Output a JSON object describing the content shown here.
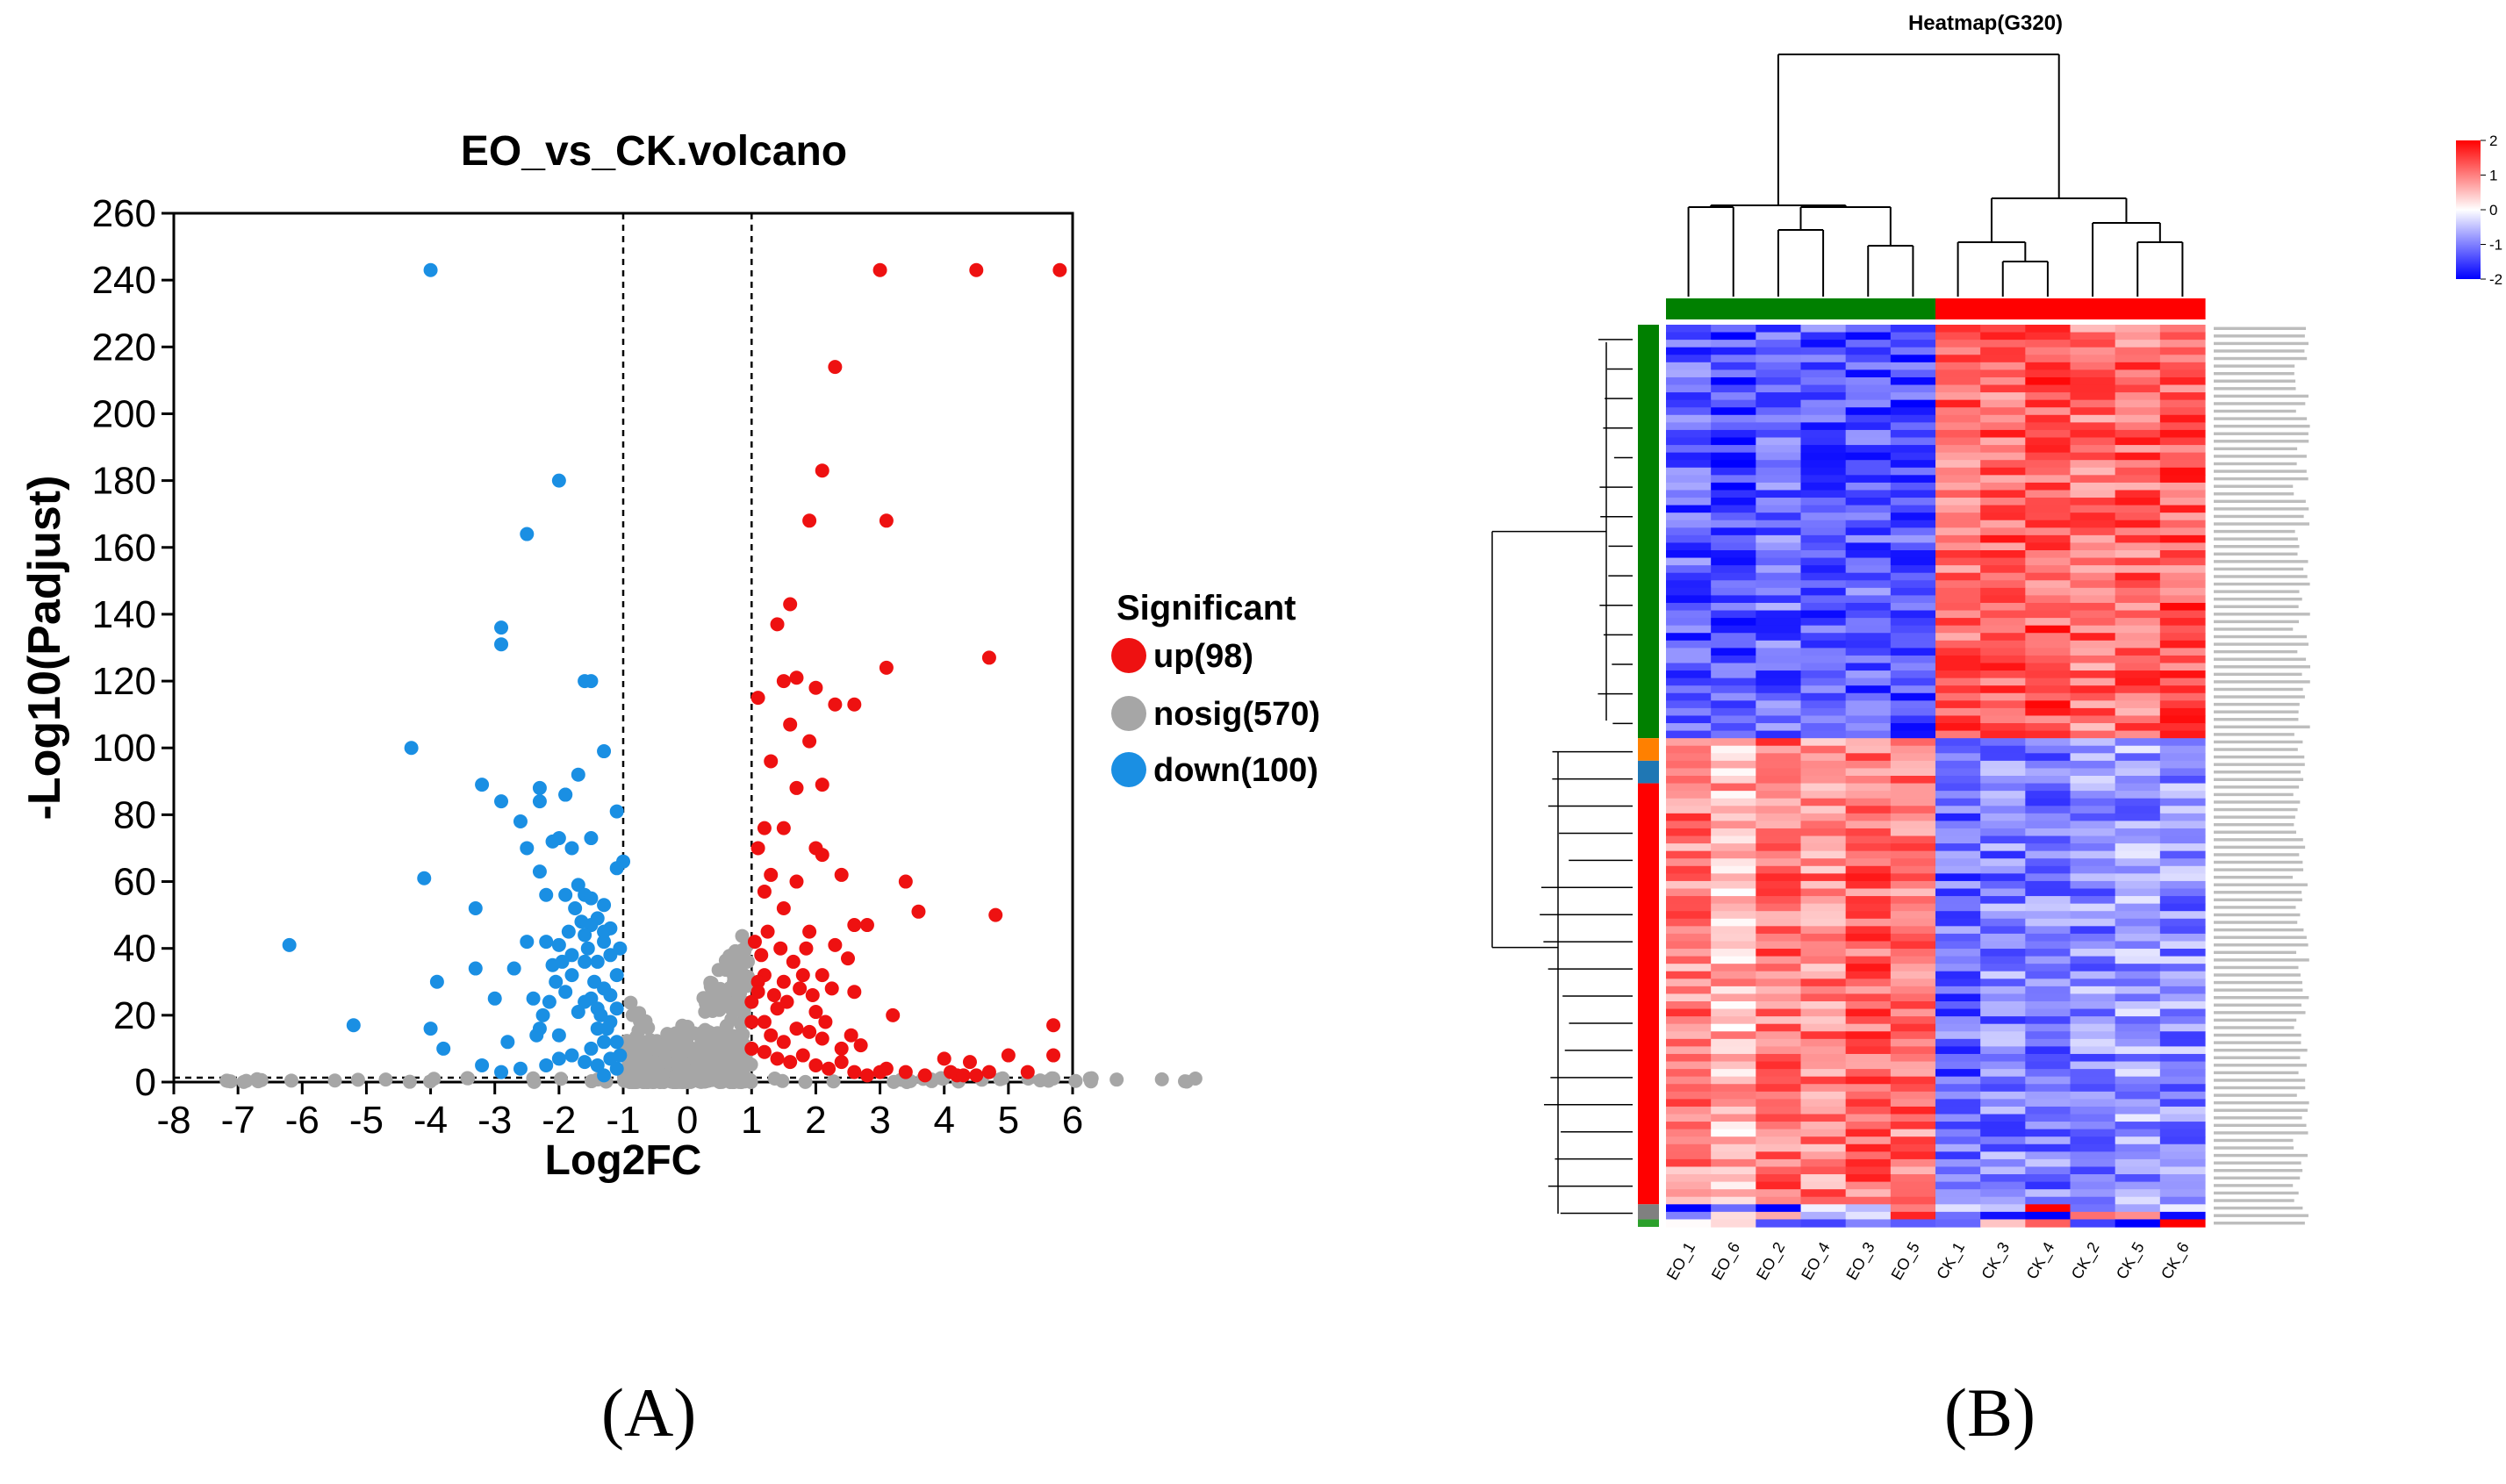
{
  "panels": {
    "a": "(A)",
    "b": "(B)"
  },
  "colors": {
    "up": "#ee1111",
    "nosig": "#a6a6a6",
    "down": "#1a8fe3",
    "heat_high": "#ff0000",
    "heat_mid": "#ffffff",
    "heat_low": "#0000ff",
    "group_eo": "#008000",
    "group_ck": "#ff0000"
  },
  "chart_data": [
    {
      "type": "scatter",
      "title": "EO_vs_CK.volcano",
      "xlabel": "Log2FC",
      "ylabel": "-Log10(Padjust)",
      "xlim": [
        -8,
        6
      ],
      "ylim": [
        0,
        260
      ],
      "xticks": [
        -8,
        -7,
        -6,
        -5,
        -4,
        -3,
        -2,
        -1,
        0,
        1,
        2,
        3,
        4,
        5,
        6
      ],
      "yticks": [
        0,
        20,
        40,
        60,
        80,
        100,
        120,
        140,
        160,
        180,
        200,
        220,
        240,
        260
      ],
      "thresholds": {
        "log2fc": [
          -1,
          1
        ],
        "padjust": 1.3
      },
      "legend_title": "Significant",
      "series": [
        {
          "name": "up(98)",
          "key": "up",
          "points": [
            [
              3.0,
              243
            ],
            [
              4.5,
              243
            ],
            [
              5.8,
              243
            ],
            [
              2.3,
              214
            ],
            [
              2.1,
              183
            ],
            [
              1.9,
              168
            ],
            [
              3.1,
              168
            ],
            [
              1.6,
              143
            ],
            [
              1.4,
              137
            ],
            [
              4.7,
              127
            ],
            [
              3.1,
              124
            ],
            [
              1.7,
              121
            ],
            [
              1.1,
              115
            ],
            [
              1.5,
              120
            ],
            [
              2.0,
              118
            ],
            [
              2.3,
              113
            ],
            [
              2.6,
              113
            ],
            [
              1.6,
              107
            ],
            [
              1.9,
              102
            ],
            [
              1.3,
              96
            ],
            [
              2.1,
              89
            ],
            [
              1.7,
              88
            ],
            [
              1.2,
              76
            ],
            [
              1.5,
              76
            ],
            [
              2.0,
              70
            ],
            [
              2.1,
              68
            ],
            [
              1.1,
              70
            ],
            [
              1.3,
              62
            ],
            [
              1.7,
              60
            ],
            [
              2.4,
              62
            ],
            [
              3.4,
              60
            ],
            [
              3.6,
              51
            ],
            [
              1.2,
              57
            ],
            [
              1.5,
              52
            ],
            [
              2.8,
              47
            ],
            [
              2.6,
              47
            ],
            [
              4.8,
              50
            ],
            [
              2.3,
              41
            ],
            [
              1.9,
              45
            ],
            [
              2.5,
              37
            ],
            [
              2.1,
              32
            ],
            [
              1.8,
              32
            ],
            [
              1.5,
              30
            ],
            [
              1.2,
              32
            ],
            [
              1.0,
              24
            ],
            [
              1.1,
              30
            ],
            [
              1.4,
              22
            ],
            [
              2.0,
              21
            ],
            [
              2.6,
              27
            ],
            [
              3.2,
              20
            ],
            [
              1.1,
              27
            ],
            [
              5.7,
              17
            ],
            [
              1.0,
              10
            ],
            [
              1.2,
              9
            ],
            [
              1.4,
              7
            ],
            [
              1.6,
              6
            ],
            [
              1.8,
              8
            ],
            [
              2.0,
              5
            ],
            [
              2.2,
              4
            ],
            [
              2.4,
              6
            ],
            [
              2.6,
              3
            ],
            [
              2.8,
              2
            ],
            [
              3.0,
              3
            ],
            [
              4.0,
              7
            ],
            [
              4.4,
              6
            ],
            [
              4.1,
              3
            ],
            [
              4.2,
              2
            ],
            [
              4.3,
              2
            ],
            [
              4.5,
              2
            ],
            [
              4.7,
              3
            ],
            [
              5.0,
              8
            ],
            [
              5.3,
              3
            ],
            [
              5.7,
              8
            ],
            [
              1.3,
              14
            ],
            [
              1.5,
              12
            ],
            [
              1.9,
              15
            ],
            [
              2.1,
              13
            ],
            [
              2.7,
              11
            ],
            [
              1.0,
              18
            ],
            [
              1.2,
              18
            ],
            [
              1.7,
              16
            ],
            [
              2.4,
              10
            ],
            [
              3.1,
              4
            ],
            [
              3.4,
              3
            ],
            [
              3.7,
              2
            ],
            [
              1.05,
              42
            ],
            [
              1.25,
              45
            ],
            [
              1.45,
              40
            ],
            [
              1.65,
              36
            ],
            [
              1.85,
              40
            ],
            [
              2.25,
              28
            ],
            [
              1.55,
              24
            ],
            [
              1.35,
              26
            ],
            [
              1.15,
              38
            ],
            [
              1.75,
              28
            ],
            [
              1.95,
              26
            ],
            [
              2.15,
              18
            ],
            [
              2.55,
              14
            ]
          ]
        },
        {
          "name": "nosig(570)",
          "key": "nosig",
          "points": "generated-near-origin"
        },
        {
          "name": "down(100)",
          "key": "down",
          "points": [
            [
              -4.0,
              243
            ],
            [
              -2.0,
              180
            ],
            [
              -2.5,
              164
            ],
            [
              -2.9,
              136
            ],
            [
              -2.9,
              131
            ],
            [
              -1.6,
              120
            ],
            [
              -1.5,
              120
            ],
            [
              -4.3,
              100
            ],
            [
              -1.3,
              99
            ],
            [
              -1.7,
              92
            ],
            [
              -3.2,
              89
            ],
            [
              -2.3,
              88
            ],
            [
              -2.3,
              84
            ],
            [
              -1.9,
              86
            ],
            [
              -1.9,
              86
            ],
            [
              -2.9,
              84
            ],
            [
              -2.6,
              78
            ],
            [
              -1.1,
              81
            ],
            [
              -2.0,
              73
            ],
            [
              -2.1,
              72
            ],
            [
              -1.5,
              73
            ],
            [
              -1.8,
              70
            ],
            [
              -2.5,
              70
            ],
            [
              -1.0,
              66
            ],
            [
              -1.1,
              64
            ],
            [
              -2.3,
              63
            ],
            [
              -4.1,
              61
            ],
            [
              -1.7,
              59
            ],
            [
              -1.9,
              56
            ],
            [
              -2.2,
              56
            ],
            [
              -1.6,
              56
            ],
            [
              -1.3,
              53
            ],
            [
              -1.5,
              55
            ],
            [
              -3.3,
              52
            ],
            [
              -1.4,
              49
            ],
            [
              -1.5,
              47
            ],
            [
              -1.2,
              46
            ],
            [
              -1.3,
              45
            ],
            [
              -1.6,
              44
            ],
            [
              -1.3,
              42
            ],
            [
              -2.5,
              42
            ],
            [
              -2.2,
              42
            ],
            [
              -2.0,
              41
            ],
            [
              -1.8,
              38
            ],
            [
              -1.6,
              36
            ],
            [
              -1.4,
              36
            ],
            [
              -1.2,
              38
            ],
            [
              -1.05,
              40
            ],
            [
              -6.2,
              41
            ],
            [
              -2.1,
              35
            ],
            [
              -3.3,
              34
            ],
            [
              -2.7,
              34
            ],
            [
              -1.8,
              32
            ],
            [
              -1.1,
              32
            ],
            [
              -1.9,
              27
            ],
            [
              -1.5,
              25
            ],
            [
              -1.3,
              28
            ],
            [
              -1.2,
              26
            ],
            [
              -2.4,
              25
            ],
            [
              -3.0,
              25
            ],
            [
              -3.9,
              30
            ],
            [
              -1.6,
              24
            ],
            [
              -1.4,
              22
            ],
            [
              -1.1,
              22
            ],
            [
              -1.7,
              21
            ],
            [
              -1.4,
              16
            ],
            [
              -1.2,
              18
            ],
            [
              -1.3,
              12
            ],
            [
              -4.0,
              16
            ],
            [
              -5.2,
              17
            ],
            [
              -2.3,
              16
            ],
            [
              -2.8,
              12
            ],
            [
              -2.0,
              14
            ],
            [
              -3.8,
              10
            ],
            [
              -1.5,
              10
            ],
            [
              -1.2,
              7
            ],
            [
              -1.4,
              5
            ],
            [
              -1.1,
              4
            ],
            [
              -1.6,
              6
            ],
            [
              -1.8,
              8
            ],
            [
              -2.0,
              7
            ],
            [
              -2.2,
              5
            ],
            [
              -2.6,
              4
            ],
            [
              -2.9,
              3
            ],
            [
              -3.2,
              5
            ],
            [
              -1.3,
              2
            ],
            [
              -1.05,
              8
            ],
            [
              -1.1,
              12
            ],
            [
              -1.25,
              16
            ],
            [
              -1.35,
              20
            ],
            [
              -1.45,
              30
            ],
            [
              -1.55,
              40
            ],
            [
              -1.65,
              48
            ],
            [
              -1.75,
              52
            ],
            [
              -1.85,
              45
            ],
            [
              -1.95,
              36
            ],
            [
              -2.05,
              30
            ],
            [
              -2.15,
              24
            ],
            [
              -2.25,
              20
            ],
            [
              -2.35,
              14
            ]
          ]
        }
      ]
    },
    {
      "type": "heatmap",
      "title": "Heatmap(G320)",
      "columns": [
        "EO_1",
        "EO_6",
        "EO_2",
        "EO_4",
        "EO_3",
        "EO_5",
        "CK_1",
        "CK_3",
        "CK_4",
        "CK_2",
        "CK_5",
        "CK_6"
      ],
      "column_groups": [
        "EO",
        "EO",
        "EO",
        "EO",
        "EO",
        "EO",
        "CK",
        "CK",
        "CK",
        "CK",
        "CK",
        "CK"
      ],
      "row_count": 320,
      "row_cluster_blocks": [
        {
          "color": "#008000",
          "rows": 146,
          "pattern": "EO-low CK-high"
        },
        {
          "color": "#ff8000",
          "rows": 8,
          "pattern": "EO-high CK-low"
        },
        {
          "color": "#1f77b4",
          "rows": 8,
          "pattern": "EO-high CK-low"
        },
        {
          "color": "#ff0000",
          "rows": 148,
          "pattern": "EO-high CK-low"
        },
        {
          "color": "#808080",
          "rows": 6,
          "pattern": "mixed"
        },
        {
          "color": "#2ca02c",
          "rows": 4,
          "pattern": "mixed"
        }
      ],
      "column_means": {
        "block1": [
          -1.3,
          -1.5,
          -1.2,
          -1.3,
          -1.3,
          -1.4,
          1.2,
          1.2,
          1.3,
          1.1,
          1.2,
          1.3
        ],
        "block2": [
          1.0,
          0.6,
          1.1,
          1.0,
          1.2,
          1.1,
          -1.2,
          -1.0,
          -1.0,
          -0.9,
          -0.8,
          -0.9
        ]
      },
      "colorbar": {
        "ticks": [
          2,
          1,
          0,
          -1,
          -2
        ],
        "range": [
          -2,
          2
        ]
      }
    }
  ]
}
